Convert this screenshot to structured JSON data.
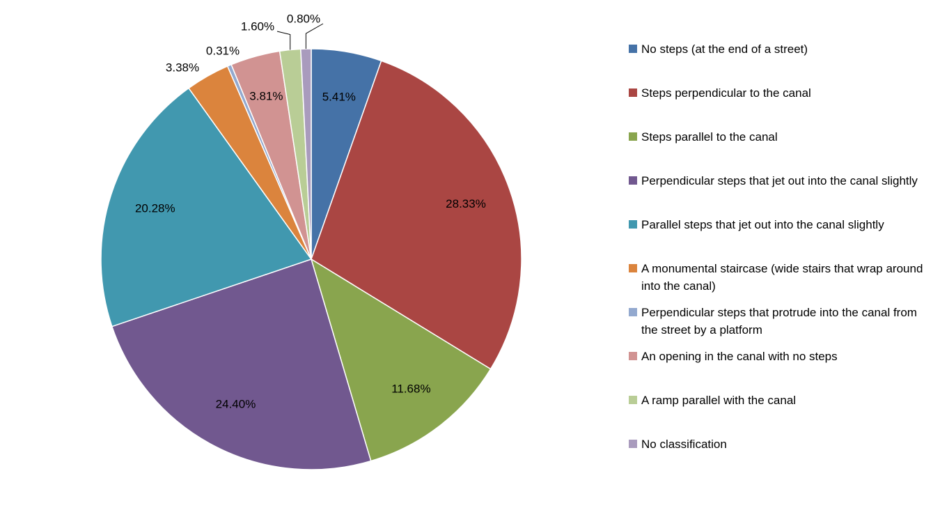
{
  "chart_data": {
    "type": "pie",
    "title": "",
    "slices": [
      {
        "label": "No steps (at the end of a street)",
        "value": 5.41,
        "value_label": "5.41%",
        "color": "#4572a7"
      },
      {
        "label": "Steps perpendicular to the canal",
        "value": 28.33,
        "value_label": "28.33%",
        "color": "#aa4643"
      },
      {
        "label": "Steps parallel to the canal",
        "value": 11.68,
        "value_label": "11.68%",
        "color": "#89a54e"
      },
      {
        "label": "Perpendicular steps that jet out into the canal slightly",
        "value": 24.4,
        "value_label": "24.40%",
        "color": "#71588f"
      },
      {
        "label": "Parallel steps that jet out into the canal slightly",
        "value": 20.28,
        "value_label": "20.28%",
        "color": "#4198af"
      },
      {
        "label": "A monumental staircase (wide stairs that wrap around into the canal)",
        "value": 3.38,
        "value_label": "3.38%",
        "color": "#db843d"
      },
      {
        "label": "Perpendicular steps that protrude into the canal from the street by a platform",
        "value": 0.31,
        "value_label": "0.31%",
        "color": "#93a9cf"
      },
      {
        "label": "An opening in the canal with no steps",
        "value": 3.81,
        "value_label": "3.81%",
        "color": "#d19392"
      },
      {
        "label": "A ramp parallel with the canal",
        "value": 1.6,
        "value_label": "1.60%",
        "color": "#b9cd96"
      },
      {
        "label": "No classification",
        "value": 0.8,
        "value_label": "0.80%",
        "color": "#a99bbd"
      }
    ],
    "legend_position": "right"
  }
}
